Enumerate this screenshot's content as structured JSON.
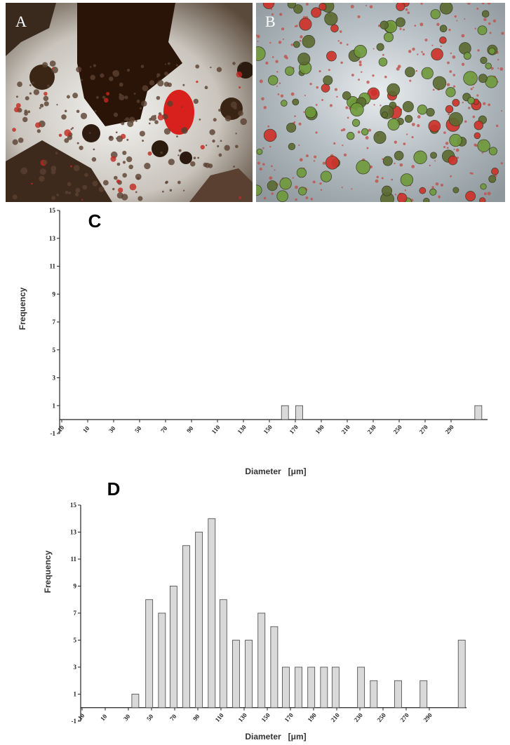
{
  "images": [
    {
      "label": "A"
    },
    {
      "label": "B"
    }
  ],
  "chart_data": [
    {
      "type": "bar",
      "title": "C",
      "x_label": "Diameter   [μm]",
      "y_label": "Frequency",
      "x": [
        162,
        173,
        311
      ],
      "values": [
        1,
        1,
        1
      ],
      "color": "#d9d9d9",
      "xlim": [
        -10,
        318
      ],
      "ylim": [
        -1,
        15
      ],
      "xticks": [
        -10,
        10,
        30,
        50,
        70,
        90,
        110,
        130,
        150,
        170,
        190,
        210,
        230,
        250,
        270,
        290
      ],
      "yticks": [
        -1,
        1,
        3,
        5,
        7,
        9,
        11,
        13,
        15
      ]
    },
    {
      "type": "bar",
      "title": "D",
      "x_label": "Diameter   [μm]",
      "y_label": "Frequency",
      "x": [
        36,
        48,
        59,
        69,
        80,
        91,
        102,
        112,
        123,
        134,
        145,
        156,
        166,
        177,
        188,
        199,
        209,
        231,
        242,
        263,
        285,
        318
      ],
      "values": [
        1,
        8,
        7,
        9,
        12,
        13,
        14,
        8,
        5,
        5,
        7,
        6,
        3,
        3,
        3,
        3,
        3,
        3,
        2,
        2,
        2,
        5
      ],
      "color": "#d9d9d9",
      "xlim": [
        -10,
        322
      ],
      "ylim": [
        -1,
        15
      ],
      "xticks": [
        -10,
        10,
        30,
        50,
        70,
        90,
        110,
        130,
        150,
        170,
        190,
        210,
        230,
        250,
        270,
        290
      ],
      "yticks": [
        -1,
        1,
        3,
        5,
        7,
        9,
        11,
        13,
        15
      ]
    }
  ]
}
